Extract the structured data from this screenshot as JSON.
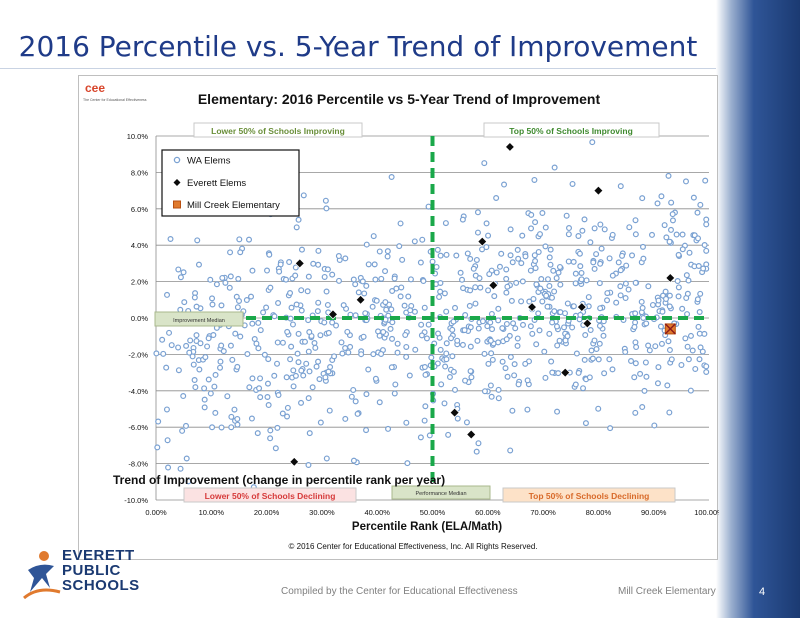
{
  "slide": {
    "title": "2016 Percentile vs. 5-Year Trend of Improvement",
    "footer_center": "Compiled by the Center for Educational Effectiveness",
    "footer_right": "Mill Creek Elementary",
    "page_number": "4"
  },
  "logo": {
    "line1": "EVERETT",
    "line2": "PUBLIC",
    "line3": "SCHOOLS",
    "cee_letters": "cee",
    "cee_caption": "The Center for Educational Effectiveness"
  },
  "colors": {
    "title_blue": "#1f3b88",
    "wa_marker": "#7aa1d2",
    "everett_marker": "#0b0b0b",
    "mill_creek_marker": "#e07a2e",
    "median_line": "#1aa84a",
    "improving_label": "#6a8f3a",
    "declining_label": "#d63a3a",
    "top_declining_label": "#d86a2a"
  },
  "chart_data": {
    "type": "scatter",
    "title": "Elementary: 2016 Percentile vs 5-Year Trend of Improvement",
    "xlabel": "Percentile Rank (ELA/Math)",
    "ylabel": "Trend of Improvement (change in percentile rank per year)",
    "xlim": [
      0,
      1
    ],
    "ylim": [
      -0.1,
      0.1
    ],
    "x_ticks": [
      "0.00%",
      "10.00%",
      "20.00%",
      "30.00%",
      "40.00%",
      "50.00%",
      "60.00%",
      "70.00%",
      "80.00%",
      "90.00%",
      "100.00%"
    ],
    "y_ticks": [
      "10.0%",
      "8.0%",
      "6.0%",
      "4.0%",
      "2.0%",
      "0.0%",
      "-2.0%",
      "-4.0%",
      "-6.0%",
      "-8.0%",
      "-10.0%"
    ],
    "grid": "horizontal",
    "legend_position": "top-left",
    "copyright": "© 2016 Center for Educational Effectiveness, Inc. All Rights Reserved.",
    "quadrant_labels": {
      "top_left": "Lower 50% of Schools Improving",
      "top_right": "Top 50% of Schools Improving",
      "bottom_left": "Lower 50% of Schools Declining",
      "bottom_right": "Top 50% of Schools Declining"
    },
    "median_labels": {
      "improvement": "Improvement Median",
      "performance": "Performance Median"
    },
    "median": {
      "x": 0.5,
      "y": 0.0
    },
    "series": [
      {
        "name": "WA Elems",
        "marker": "circle",
        "count": 900,
        "note_values": "individual points not labeled; distribution spans x 0–100%, y -10% to 10%"
      },
      {
        "name": "Everett Elems",
        "marker": "diamond",
        "points": [
          {
            "x": 0.26,
            "y": 0.03
          },
          {
            "x": 0.25,
            "y": -0.079
          },
          {
            "x": 0.32,
            "y": 0.002
          },
          {
            "x": 0.37,
            "y": 0.01
          },
          {
            "x": 0.54,
            "y": -0.052
          },
          {
            "x": 0.57,
            "y": -0.064
          },
          {
            "x": 0.59,
            "y": 0.042
          },
          {
            "x": 0.61,
            "y": 0.018
          },
          {
            "x": 0.64,
            "y": 0.094
          },
          {
            "x": 0.68,
            "y": 0.006
          },
          {
            "x": 0.74,
            "y": -0.03
          },
          {
            "x": 0.77,
            "y": 0.006
          },
          {
            "x": 0.78,
            "y": -0.003
          },
          {
            "x": 0.8,
            "y": 0.07
          },
          {
            "x": 0.93,
            "y": 0.022
          }
        ]
      },
      {
        "name": "Mill Creek Elementary",
        "marker": "square-x",
        "points": [
          {
            "x": 0.93,
            "y": -0.006
          }
        ]
      }
    ]
  }
}
